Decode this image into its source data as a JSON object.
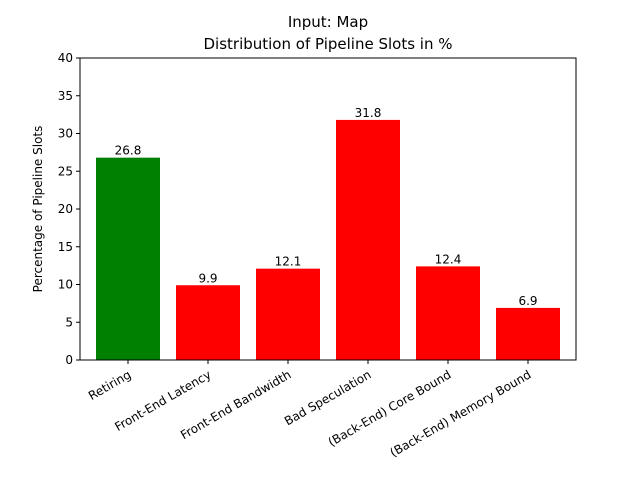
{
  "chart_data": {
    "type": "bar",
    "title": "Input: Map",
    "subtitle": "Distribution of Pipeline Slots in %",
    "xlabel": "",
    "ylabel": "Percentage of Pipeline Slots",
    "ylim": [
      0,
      40
    ],
    "yticks": [
      "0",
      "5",
      "10",
      "15",
      "20",
      "25",
      "30",
      "35",
      "40"
    ],
    "categories": [
      "Retiring",
      "Front-End Latency",
      "Front-End Bandwidth",
      "Bad Speculation",
      "(Back-End) Core Bound",
      "(Back-End) Memory Bound"
    ],
    "values": [
      26.8,
      9.9,
      12.1,
      31.8,
      12.4,
      6.9
    ],
    "value_labels": [
      "26.8",
      "9.9",
      "12.1",
      "31.8",
      "12.4",
      "6.9"
    ],
    "bar_colors": [
      "#008000",
      "#ff0000",
      "#ff0000",
      "#ff0000",
      "#ff0000",
      "#ff0000"
    ],
    "grid": false,
    "legend": "none"
  }
}
